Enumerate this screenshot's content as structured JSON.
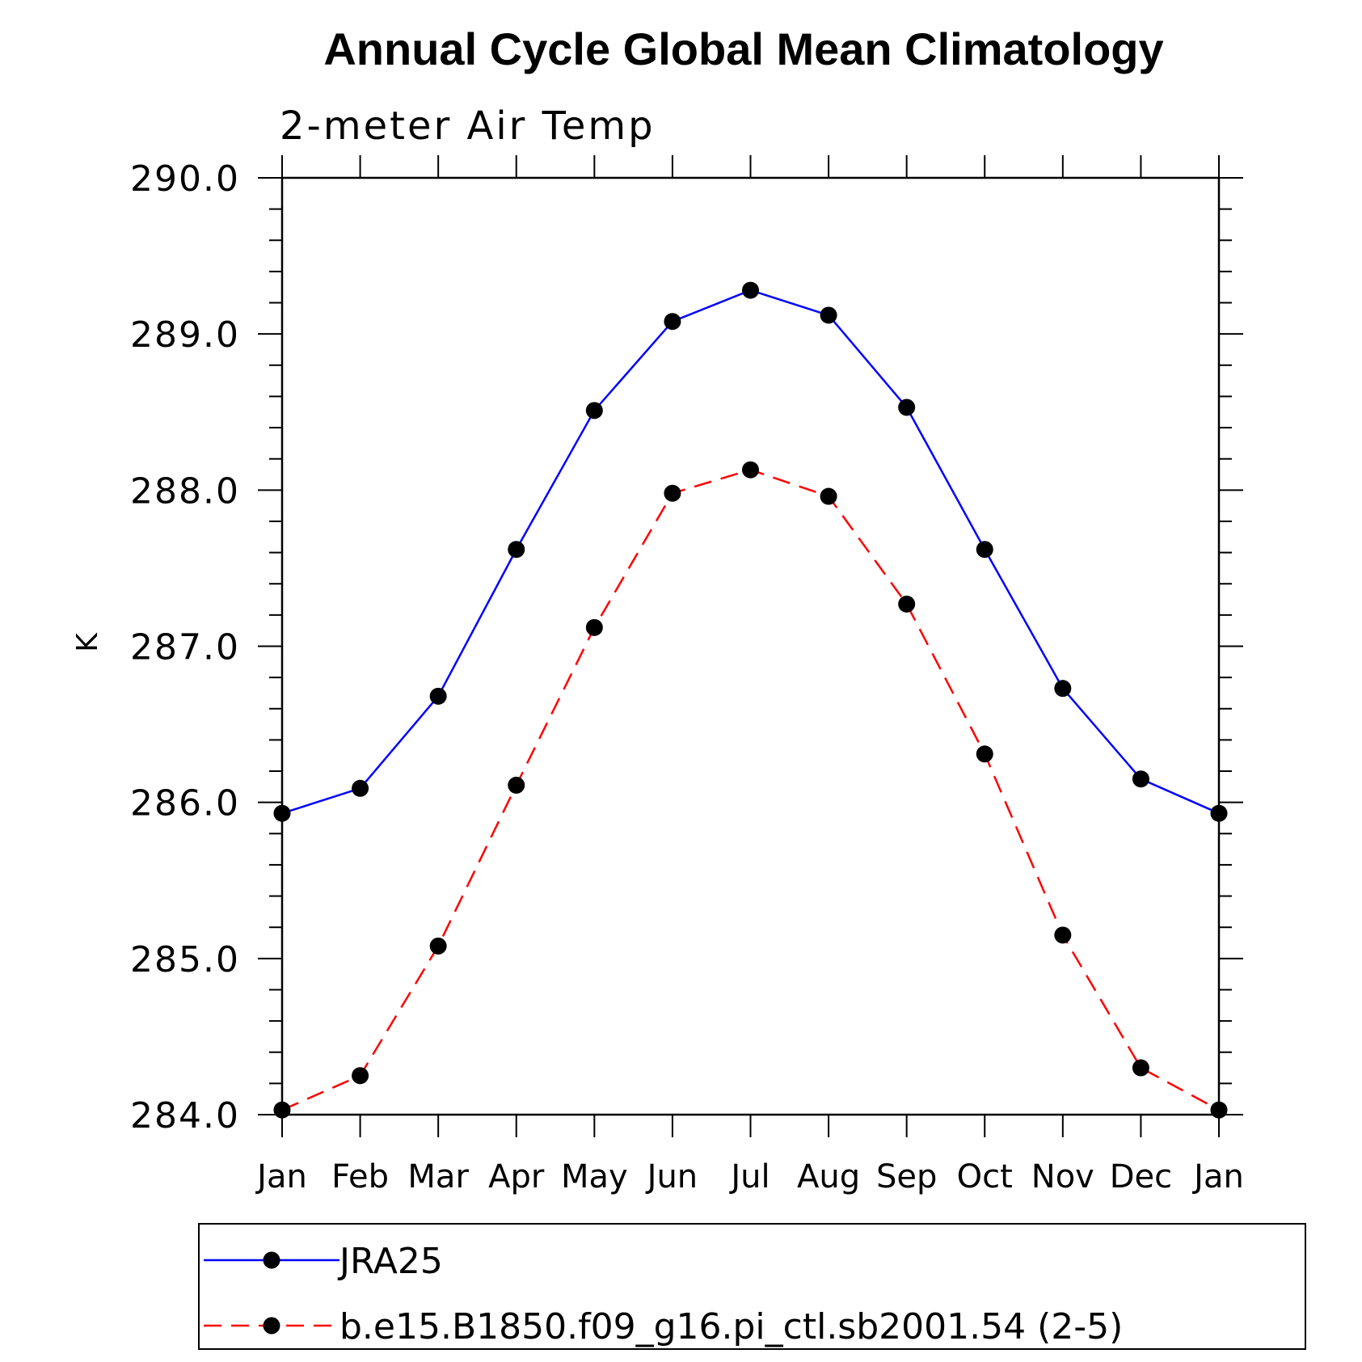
{
  "chart_data": {
    "type": "line",
    "title": "Annual Cycle Global Mean Climatology",
    "subtitle": "2-meter Air Temp",
    "xlabel": "",
    "ylabel": "K",
    "categories": [
      "Jan",
      "Feb",
      "Mar",
      "Apr",
      "May",
      "Jun",
      "Jul",
      "Aug",
      "Sep",
      "Oct",
      "Nov",
      "Dec",
      "Jan"
    ],
    "ylim": [
      284.0,
      290.0
    ],
    "yticks": [
      "284.0",
      "285.0",
      "286.0",
      "287.0",
      "288.0",
      "289.0",
      "290.0"
    ],
    "yminor_step": 0.2,
    "grid": false,
    "legend_position": "bottom",
    "series": [
      {
        "name": "JRA25",
        "color": "#0000ff",
        "dash": "solid",
        "marker": "filled-circle",
        "values": [
          285.93,
          286.09,
          286.68,
          287.62,
          288.51,
          289.08,
          289.28,
          289.12,
          288.53,
          287.62,
          286.73,
          286.15,
          285.93
        ]
      },
      {
        "name": "b.e15.B1850.f09_g16.pi_ctl.sb2001.54 (2-5)",
        "color": "#ff0000",
        "dash": "dashed",
        "marker": "filled-circle",
        "values": [
          284.03,
          284.25,
          285.08,
          286.11,
          287.12,
          287.98,
          288.13,
          287.96,
          287.27,
          286.31,
          285.15,
          284.3,
          284.03
        ]
      }
    ]
  }
}
